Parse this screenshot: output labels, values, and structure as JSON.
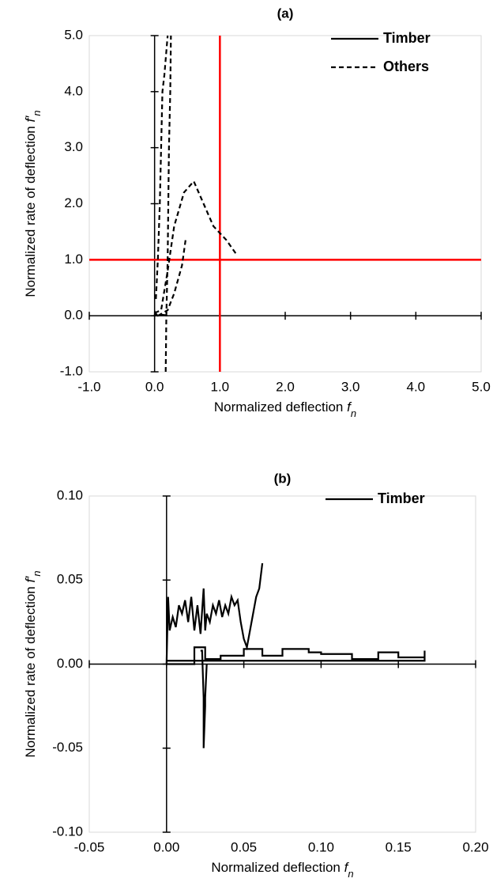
{
  "chart_data": [
    {
      "type": "line",
      "title": "(a)",
      "xlabel": {
        "text": "Normalized deflection ",
        "symbol": "f",
        "subscript": "n"
      },
      "ylabel": {
        "text": "Normalized rate of deflection ",
        "symbol": "f′",
        "subscript": "n"
      },
      "xlim": [
        -1,
        5
      ],
      "ylim": [
        -1,
        5
      ],
      "xticks": [
        {
          "value": -1,
          "label": "-1.0"
        },
        {
          "value": 0,
          "label": "0.0"
        },
        {
          "value": 1,
          "label": "1.0"
        },
        {
          "value": 2,
          "label": "2.0"
        },
        {
          "value": 3,
          "label": "3.0"
        },
        {
          "value": 4,
          "label": "4.0"
        },
        {
          "value": 5,
          "label": "5.0"
        }
      ],
      "yticks": [
        {
          "value": -1,
          "label": "-1.0"
        },
        {
          "value": 0,
          "label": "0.0"
        },
        {
          "value": 1,
          "label": "1.0"
        },
        {
          "value": 2,
          "label": "2.0"
        },
        {
          "value": 3,
          "label": "3.0"
        },
        {
          "value": 4,
          "label": "4.0"
        },
        {
          "value": 5,
          "label": "5.0"
        }
      ],
      "legend": "upper right",
      "reference_lines": [
        {
          "axis": "x",
          "value": 1,
          "color": "#ff0000"
        },
        {
          "axis": "y",
          "value": 1,
          "color": "#ff0000"
        }
      ],
      "series": [
        {
          "name": "Timber",
          "color": "#000000",
          "linestyle": "solid",
          "x": [
            0,
            0.01,
            0.03,
            0.05,
            0.1,
            0.17
          ],
          "values": [
            0,
            0.06,
            0.02,
            0.0,
            0.02,
            0.01
          ]
        },
        {
          "name": "Others",
          "color": "#000000",
          "linestyle": "dashed",
          "x": [
            0.02,
            0.05,
            0.08,
            0.1,
            0.12,
            0.15,
            0.2,
            null,
            0.17,
            0.18,
            0.2,
            0.21,
            0.22,
            0.23,
            0.24,
            0.25,
            null,
            0.0,
            0.1,
            0.2,
            0.3,
            0.45,
            0.6,
            0.75,
            0.9,
            1.1,
            1.25,
            null,
            0.05,
            0.2,
            0.3,
            0.42,
            0.48
          ],
          "values": [
            0.3,
            1.0,
            2.0,
            3.0,
            4.0,
            4.3,
            5.0,
            null,
            -1.0,
            0.0,
            1.0,
            2.0,
            3.0,
            3.5,
            4.0,
            5.0,
            null,
            0.05,
            0.1,
            0.8,
            1.6,
            2.2,
            2.4,
            2.0,
            1.6,
            1.35,
            1.1,
            null,
            0.0,
            0.1,
            0.4,
            0.9,
            1.4
          ]
        }
      ]
    },
    {
      "type": "line",
      "title": "(b)",
      "xlabel": {
        "text": "Normalized deflection ",
        "symbol": "f",
        "subscript": "n"
      },
      "ylabel": {
        "text": "Normalized rate of deflection ",
        "symbol": "f′",
        "subscript": "n"
      },
      "xlim": [
        -0.05,
        0.2
      ],
      "ylim": [
        -0.1,
        0.1
      ],
      "xticks": [
        {
          "value": -0.05,
          "label": "-0.05"
        },
        {
          "value": 0,
          "label": "0.00"
        },
        {
          "value": 0.05,
          "label": "0.05"
        },
        {
          "value": 0.1,
          "label": "0.10"
        },
        {
          "value": 0.15,
          "label": "0.15"
        },
        {
          "value": 0.2,
          "label": "0.20"
        }
      ],
      "yticks": [
        {
          "value": -0.1,
          "label": "-0.10"
        },
        {
          "value": -0.05,
          "label": "-0.05"
        },
        {
          "value": 0,
          "label": "0.00"
        },
        {
          "value": 0.05,
          "label": "0.05"
        },
        {
          "value": 0.1,
          "label": "0.10"
        }
      ],
      "legend": "upper right",
      "series": [
        {
          "name": "Timber",
          "color": "#000000",
          "linestyle": "solid",
          "x": [
            0,
            0.001,
            0.002,
            0.004,
            0.006,
            0.008,
            0.01,
            0.012,
            0.014,
            0.016,
            0.018,
            0.02,
            0.022,
            0.024,
            0.025,
            0.026,
            0.028,
            0.03,
            0.032,
            0.034,
            0.036,
            0.038,
            0.04,
            0.042,
            0.044,
            0.046,
            0.048,
            0.05,
            0.052,
            0.054,
            0.056,
            0.058,
            0.06,
            0.062,
            null,
            0.022,
            0.023,
            0.024,
            0.024,
            0.025,
            0.025,
            0.026,
            null,
            0,
            0.018,
            0.018,
            0.025,
            0.025,
            0.035,
            0.035,
            0.05,
            0.05,
            0.062,
            0.062,
            0.075,
            0.075,
            0.092,
            0.092,
            0.1,
            0.1,
            0.12,
            0.12,
            0.137,
            0.137,
            0.15,
            0.15,
            0.167,
            0.167,
            0.167,
            0
          ],
          "values": [
            0,
            0.04,
            0.02,
            0.028,
            0.022,
            0.035,
            0.03,
            0.038,
            0.025,
            0.04,
            0.02,
            0.035,
            0.018,
            0.045,
            0.02,
            0.03,
            0.025,
            0.035,
            0.03,
            0.038,
            0.028,
            0.035,
            0.03,
            0.04,
            0.035,
            0.038,
            0.025,
            0.015,
            0.01,
            0.02,
            0.03,
            0.04,
            0.045,
            0.06,
            null,
            0.008,
            0.008,
            -0.02,
            -0.05,
            -0.025,
            -0.02,
            0,
            null,
            0,
            0,
            0.01,
            0.01,
            0.003,
            0.003,
            0.005,
            0.005,
            0.009,
            0.009,
            0.005,
            0.005,
            0.009,
            0.009,
            0.007,
            0.007,
            0.006,
            0.006,
            0.003,
            0.003,
            0.007,
            0.007,
            0.004,
            0.004,
            0.008,
            0.002,
            0.002
          ]
        }
      ]
    }
  ]
}
